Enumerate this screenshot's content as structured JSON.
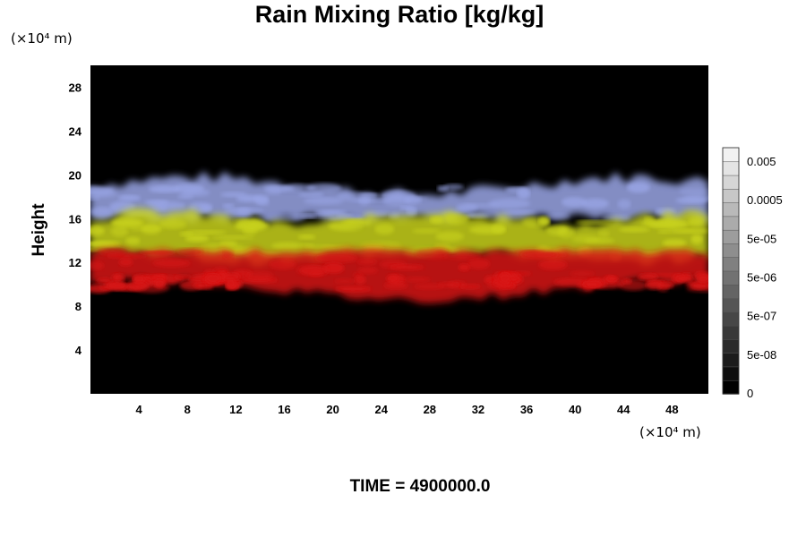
{
  "chart_data": {
    "type": "heatmap",
    "title": "Rain Mixing Ratio [kg/kg]",
    "ylabel": "Height",
    "x_unit_label": "(×10⁴ m)",
    "y_unit_label": "(×10⁴ m)",
    "x_range": [
      0,
      51
    ],
    "y_range": [
      0,
      30
    ],
    "x_ticks": [
      4,
      8,
      12,
      16,
      20,
      24,
      28,
      32,
      36,
      40,
      44,
      48
    ],
    "y_ticks": [
      4,
      8,
      12,
      16,
      20,
      24,
      28
    ],
    "x_tick_labels": [
      "4",
      "8",
      "12",
      "16",
      "20",
      "24",
      "28",
      "32",
      "36",
      "40",
      "44",
      "48"
    ],
    "y_tick_labels": [
      "4",
      "8",
      "12",
      "16",
      "20",
      "24",
      "28"
    ],
    "background_color": "#000000",
    "colorbar": {
      "labels": [
        "0.005",
        "0.0005",
        "5e-05",
        "5e-06",
        "5e-07",
        "5e-08",
        "0"
      ],
      "min_color": "#000000",
      "max_color": "#f2f2f2"
    },
    "layers": [
      {
        "name": "upper",
        "color": "#9aa6e6",
        "y_bottom": 16,
        "y_top": 19
      },
      {
        "name": "middle",
        "color": "#c8d21e",
        "y_bottom": 12.5,
        "y_top": 16
      },
      {
        "name": "lower",
        "color": "#d81414",
        "y_bottom": 9.5,
        "y_top": 13
      }
    ],
    "time_label": "TIME = 4900000.0"
  }
}
